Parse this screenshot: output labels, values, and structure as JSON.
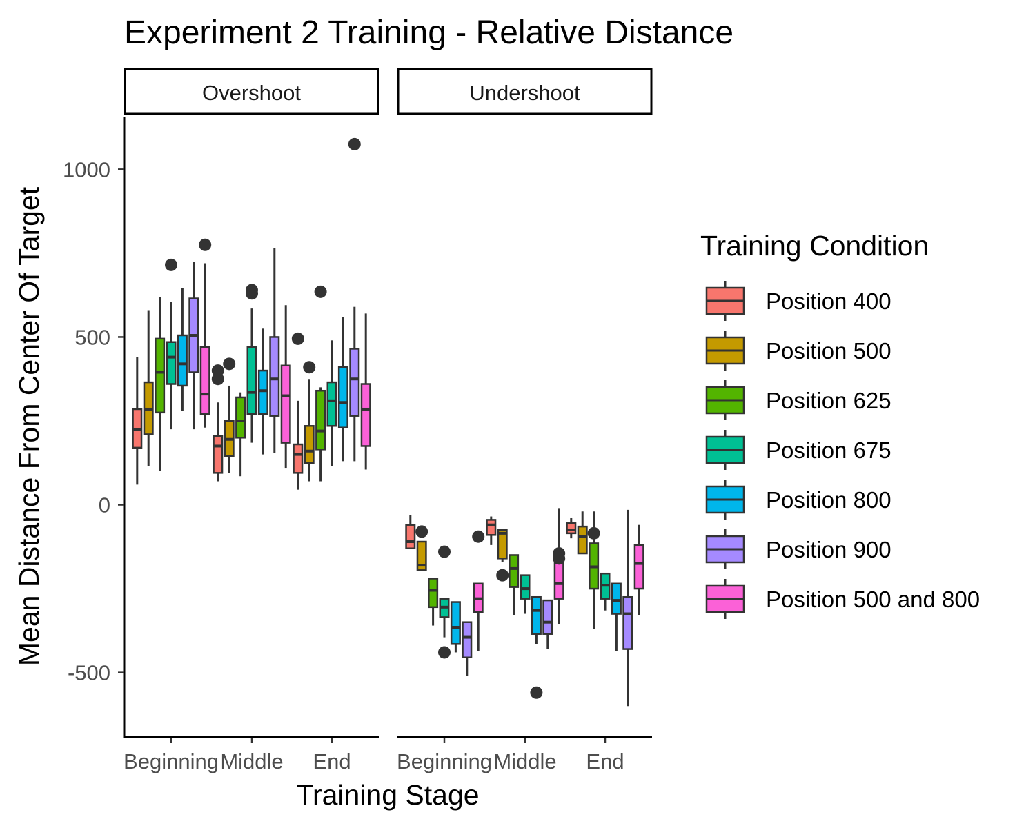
{
  "chart_data": {
    "type": "boxplot",
    "title": "Experiment 2 Training - Relative Distance",
    "xlabel": "Training Stage",
    "ylabel": "Mean Distance From Center Of Target",
    "ylim": [
      -690,
      1155
    ],
    "yticks": [
      1000,
      500,
      0,
      -500
    ],
    "ytick_labels": [
      "1000",
      "500",
      "0",
      "-500"
    ],
    "categories": [
      "Beginning",
      "Middle",
      "End"
    ],
    "grid": false,
    "legend_position": "right",
    "legend": {
      "title": "Training Condition",
      "items": [
        {
          "name": "Position 400",
          "color": "#F8766D"
        },
        {
          "name": "Position 500",
          "color": "#C49A00"
        },
        {
          "name": "Position 625",
          "color": "#53B400"
        },
        {
          "name": "Position 675",
          "color": "#00C094"
        },
        {
          "name": "Position 800",
          "color": "#00B6EB"
        },
        {
          "name": "Position 900",
          "color": "#A58AFF"
        },
        {
          "name": "Position 500 and 800",
          "color": "#FB61D7"
        }
      ]
    },
    "panels": [
      {
        "name": "Overshoot",
        "groups": [
          {
            "stage": "Beginning",
            "boxes": [
              {
                "condition": "Position 400",
                "whisker_low": 60,
                "q1": 170,
                "median": 225,
                "q3": 285,
                "whisker_high": 440,
                "outliers": []
              },
              {
                "condition": "Position 500",
                "whisker_low": 115,
                "q1": 210,
                "median": 285,
                "q3": 365,
                "whisker_high": 580,
                "outliers": []
              },
              {
                "condition": "Position 625",
                "whisker_low": 100,
                "q1": 275,
                "median": 395,
                "q3": 495,
                "whisker_high": 620,
                "outliers": []
              },
              {
                "condition": "Position 675",
                "whisker_low": 225,
                "q1": 360,
                "median": 440,
                "q3": 485,
                "whisker_high": 605,
                "outliers": [
                  715
                ]
              },
              {
                "condition": "Position 800",
                "whisker_low": 280,
                "q1": 355,
                "median": 420,
                "q3": 505,
                "whisker_high": 645,
                "outliers": []
              },
              {
                "condition": "Position 900",
                "whisker_low": 225,
                "q1": 395,
                "median": 505,
                "q3": 615,
                "whisker_high": 725,
                "outliers": []
              },
              {
                "condition": "Position 500 and 800",
                "whisker_low": 230,
                "q1": 270,
                "median": 330,
                "q3": 470,
                "whisker_high": 720,
                "outliers": [
                  775
                ]
              }
            ]
          },
          {
            "stage": "Middle",
            "boxes": [
              {
                "condition": "Position 400",
                "whisker_low": 70,
                "q1": 95,
                "median": 175,
                "q3": 205,
                "whisker_high": 305,
                "outliers": [
                  400,
                  375
                ]
              },
              {
                "condition": "Position 500",
                "whisker_low": 95,
                "q1": 145,
                "median": 195,
                "q3": 250,
                "whisker_high": 355,
                "outliers": [
                  420
                ]
              },
              {
                "condition": "Position 625",
                "whisker_low": 85,
                "q1": 200,
                "median": 250,
                "q3": 320,
                "whisker_high": 335,
                "outliers": []
              },
              {
                "condition": "Position 675",
                "whisker_low": 185,
                "q1": 270,
                "median": 335,
                "q3": 470,
                "whisker_high": 585,
                "outliers": [
                  640,
                  630
                ]
              },
              {
                "condition": "Position 800",
                "whisker_low": 150,
                "q1": 270,
                "median": 340,
                "q3": 400,
                "whisker_high": 525,
                "outliers": []
              },
              {
                "condition": "Position 900",
                "whisker_low": 155,
                "q1": 265,
                "median": 375,
                "q3": 500,
                "whisker_high": 765,
                "outliers": []
              },
              {
                "condition": "Position 500 and 800",
                "whisker_low": 110,
                "q1": 185,
                "median": 325,
                "q3": 415,
                "whisker_high": 595,
                "outliers": []
              }
            ]
          },
          {
            "stage": "End",
            "boxes": [
              {
                "condition": "Position 400",
                "whisker_low": 45,
                "q1": 95,
                "median": 150,
                "q3": 180,
                "whisker_high": 310,
                "outliers": [
                  495
                ]
              },
              {
                "condition": "Position 500",
                "whisker_low": 70,
                "q1": 125,
                "median": 160,
                "q3": 235,
                "whisker_high": 375,
                "outliers": [
                  410
                ]
              },
              {
                "condition": "Position 625",
                "whisker_low": 70,
                "q1": 165,
                "median": 220,
                "q3": 340,
                "whisker_high": 350,
                "outliers": [
                  635
                ]
              },
              {
                "condition": "Position 675",
                "whisker_low": 115,
                "q1": 235,
                "median": 310,
                "q3": 365,
                "whisker_high": 490,
                "outliers": []
              },
              {
                "condition": "Position 800",
                "whisker_low": 130,
                "q1": 230,
                "median": 305,
                "q3": 410,
                "whisker_high": 560,
                "outliers": []
              },
              {
                "condition": "Position 900",
                "whisker_low": 130,
                "q1": 265,
                "median": 375,
                "q3": 465,
                "whisker_high": 590,
                "outliers": [
                  1075
                ]
              },
              {
                "condition": "Position 500 and 800",
                "whisker_low": 105,
                "q1": 175,
                "median": 285,
                "q3": 360,
                "whisker_high": 570,
                "outliers": []
              }
            ]
          }
        ]
      },
      {
        "name": "Undershoot",
        "groups": [
          {
            "stage": "Beginning",
            "boxes": [
              {
                "condition": "Position 400",
                "whisker_low": -130,
                "q1": -130,
                "median": -110,
                "q3": -60,
                "whisker_high": -30,
                "outliers": []
              },
              {
                "condition": "Position 500",
                "whisker_low": -195,
                "q1": -195,
                "median": -180,
                "q3": -110,
                "whisker_high": -110,
                "outliers": [
                  -80
                ]
              },
              {
                "condition": "Position 625",
                "whisker_low": -360,
                "q1": -305,
                "median": -255,
                "q3": -220,
                "whisker_high": -220,
                "outliers": []
              },
              {
                "condition": "Position 675",
                "whisker_low": -395,
                "q1": -335,
                "median": -305,
                "q3": -280,
                "whisker_high": -280,
                "outliers": [
                  -140,
                  -440
                ]
              },
              {
                "condition": "Position 800",
                "whisker_low": -440,
                "q1": -415,
                "median": -365,
                "q3": -290,
                "whisker_high": -290,
                "outliers": []
              },
              {
                "condition": "Position 900",
                "whisker_low": -510,
                "q1": -455,
                "median": -395,
                "q3": -350,
                "whisker_high": -350,
                "outliers": []
              },
              {
                "condition": "Position 500 and 800",
                "whisker_low": -435,
                "q1": -320,
                "median": -280,
                "q3": -235,
                "whisker_high": -235,
                "outliers": [
                  -95
                ]
              }
            ]
          },
          {
            "stage": "Middle",
            "boxes": [
              {
                "condition": "Position 400",
                "whisker_low": -120,
                "q1": -90,
                "median": -60,
                "q3": -45,
                "whisker_high": -35,
                "outliers": []
              },
              {
                "condition": "Position 500",
                "whisker_low": -170,
                "q1": -160,
                "median": -85,
                "q3": -75,
                "whisker_high": -75,
                "outliers": [
                  -210
                ]
              },
              {
                "condition": "Position 625",
                "whisker_low": -330,
                "q1": -245,
                "median": -190,
                "q3": -150,
                "whisker_high": -150,
                "outliers": []
              },
              {
                "condition": "Position 675",
                "whisker_low": -325,
                "q1": -280,
                "median": -250,
                "q3": -210,
                "whisker_high": -210,
                "outliers": []
              },
              {
                "condition": "Position 800",
                "whisker_low": -415,
                "q1": -385,
                "median": -315,
                "q3": -275,
                "whisker_high": -275,
                "outliers": [
                  -560
                ]
              },
              {
                "condition": "Position 900",
                "whisker_low": -430,
                "q1": -385,
                "median": -350,
                "q3": -285,
                "whisker_high": -285,
                "outliers": []
              },
              {
                "condition": "Position 500 and 800",
                "whisker_low": -355,
                "q1": -280,
                "median": -235,
                "q3": -170,
                "whisker_high": -10,
                "outliers": [
                  -145,
                  -160
                ]
              }
            ]
          },
          {
            "stage": "End",
            "boxes": [
              {
                "condition": "Position 400",
                "whisker_low": -100,
                "q1": -85,
                "median": -75,
                "q3": -55,
                "whisker_high": -40,
                "outliers": []
              },
              {
                "condition": "Position 500",
                "whisker_low": -145,
                "q1": -145,
                "median": -95,
                "q3": -65,
                "whisker_high": -20,
                "outliers": []
              },
              {
                "condition": "Position 625",
                "whisker_low": -370,
                "q1": -250,
                "median": -185,
                "q3": -115,
                "whisker_high": -20,
                "outliers": [
                  -85
                ]
              },
              {
                "condition": "Position 675",
                "whisker_low": -315,
                "q1": -280,
                "median": -240,
                "q3": -205,
                "whisker_high": -205,
                "outliers": []
              },
              {
                "condition": "Position 800",
                "whisker_low": -435,
                "q1": -325,
                "median": -285,
                "q3": -235,
                "whisker_high": -235,
                "outliers": []
              },
              {
                "condition": "Position 900",
                "whisker_low": -600,
                "q1": -430,
                "median": -325,
                "q3": -275,
                "whisker_high": -15,
                "outliers": []
              },
              {
                "condition": "Position 500 and 800",
                "whisker_low": -330,
                "q1": -250,
                "median": -175,
                "q3": -120,
                "whisker_high": -60,
                "outliers": []
              }
            ]
          }
        ]
      }
    ]
  }
}
